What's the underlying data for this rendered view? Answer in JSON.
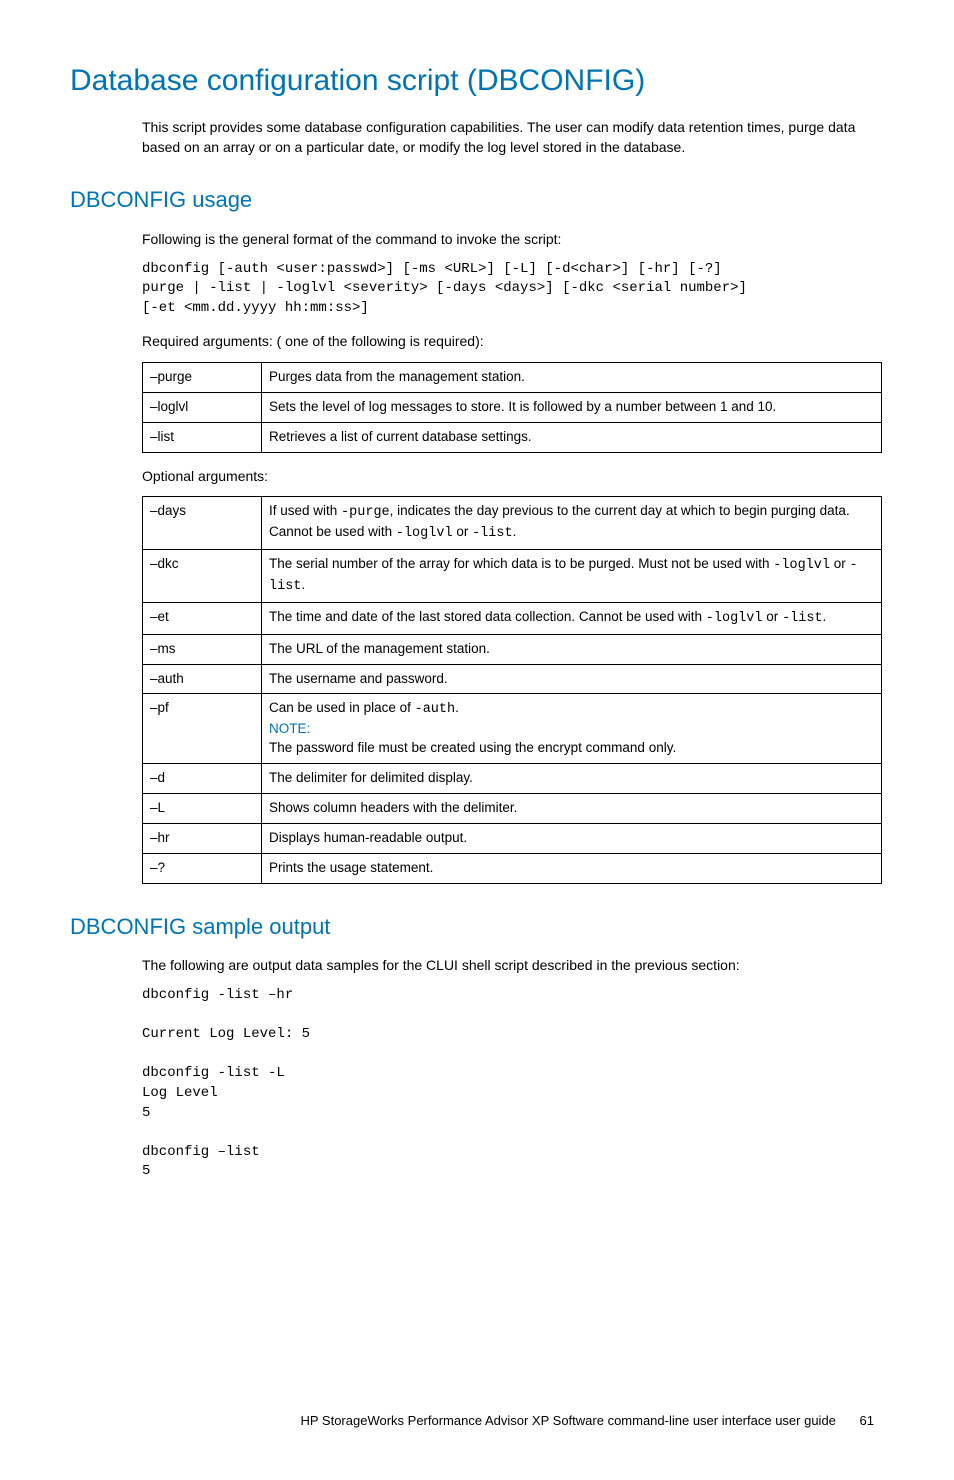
{
  "title": "Database configuration script (DBCONFIG)",
  "intro": "This script provides some database configuration capabilities. The user can modify data retention times, purge data based on an array or on a particular date, or modify the log level stored in the database.",
  "usage_heading": "DBCONFIG usage",
  "usage_intro": "Following is the general format of the command to invoke the script:",
  "usage_code": "dbconfig [-auth <user:passwd>] [-ms <URL>] [-L] [-d<char>] [-hr] [-?]\npurge | -list | -loglvl <severity> [-days <days>] [-dkc <serial number>]\n[-et <mm.dd.yyyy hh:mm:ss>]",
  "required_label": "Required arguments: ( one of the following is required):",
  "required": [
    {
      "arg": "–purge",
      "desc": "Purges data from the management station."
    },
    {
      "arg": "–loglvl",
      "desc": "Sets the level of log messages to store. It is followed by a number between 1 and 10."
    },
    {
      "arg": "–list",
      "desc": "Retrieves a list of current database settings."
    }
  ],
  "optional_label": "Optional arguments:",
  "optional": {
    "days": {
      "arg": "–days",
      "pre": "If used with ",
      "code1": "-purge",
      "mid": ", indicates the day previous to the current day at which to begin purging data. Cannot be used with ",
      "code2": "-loglvl",
      "mid2": " or ",
      "code3": "-list",
      "end": "."
    },
    "dkc": {
      "arg": "–dkc",
      "pre": "The serial number of the array for which data is to be purged. Must not be used with ",
      "code1": "-loglvl",
      "mid": " or ",
      "code2": "-list",
      "end": "."
    },
    "et": {
      "arg": "–et",
      "pre": "The time and date of the last stored data collection. Cannot be used with ",
      "code1": "-loglvl",
      "mid": " or ",
      "code2": "-list",
      "end": "."
    },
    "ms": {
      "arg": "–ms",
      "desc": "The URL of the management station."
    },
    "auth": {
      "arg": "–auth",
      "desc": "The username and password."
    },
    "pf": {
      "arg": "–pf",
      "pre": "Can be used in place of ",
      "code1": "-auth",
      "end": ".",
      "note": "NOTE:",
      "note_text": "The password file must be created using the encrypt command only."
    },
    "d": {
      "arg": "–d",
      "desc": "The delimiter for delimited display."
    },
    "L": {
      "arg": "–L",
      "desc": "Shows column headers with the delimiter."
    },
    "hr": {
      "arg": "–hr",
      "desc": "Displays human-readable output."
    },
    "q": {
      "arg": "–?",
      "desc": "Prints the usage statement."
    }
  },
  "sample_heading": "DBCONFIG sample output",
  "sample_intro": "The following are output data samples for the CLUI shell script described in the previous section:",
  "sample_code": "dbconfig -list –hr\n\nCurrent Log Level: 5\n\ndbconfig -list -L\nLog Level\n5\n\ndbconfig –list\n5",
  "footer_text": "HP StorageWorks Performance Advisor XP Software command-line user interface user guide",
  "page_number": "61"
}
